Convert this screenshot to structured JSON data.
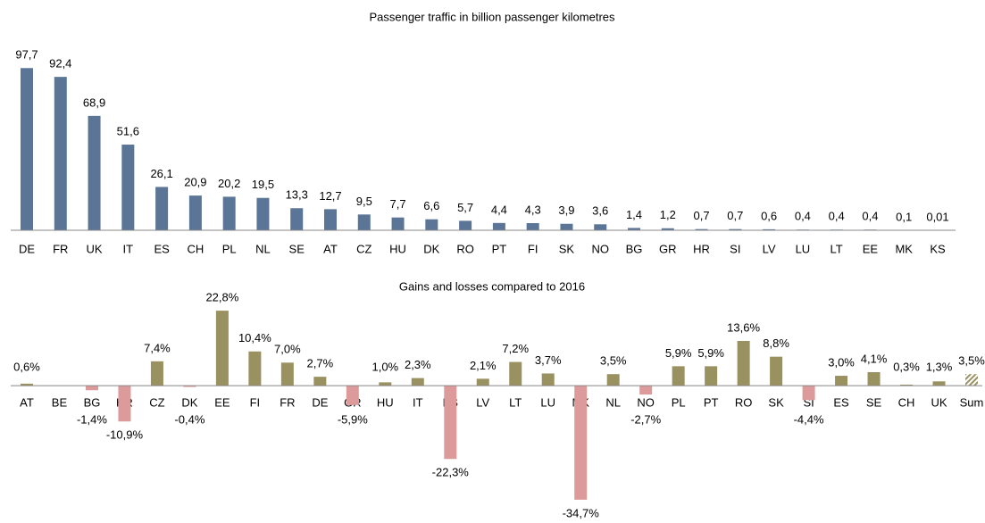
{
  "chart_data": [
    {
      "type": "bar",
      "title": "Passenger traffic in billion passenger kilometres",
      "categories": [
        "DE",
        "FR",
        "UK",
        "IT",
        "ES",
        "CH",
        "PL",
        "NL",
        "SE",
        "AT",
        "CZ",
        "HU",
        "DK",
        "RO",
        "PT",
        "FI",
        "SK",
        "NO",
        "BG",
        "GR",
        "HR",
        "SI",
        "LV",
        "LU",
        "LT",
        "EE",
        "MK",
        "KS"
      ],
      "values": [
        97.7,
        92.4,
        68.9,
        51.6,
        26.1,
        20.9,
        20.2,
        19.5,
        13.3,
        12.7,
        9.5,
        7.7,
        6.6,
        5.7,
        4.4,
        4.3,
        3.9,
        3.6,
        1.4,
        1.2,
        0.7,
        0.7,
        0.6,
        0.4,
        0.4,
        0.4,
        0.1,
        0.01
      ],
      "value_labels": [
        "97,7",
        "92,4",
        "68,9",
        "51,6",
        "26,1",
        "20,9",
        "20,2",
        "19,5",
        "13,3",
        "12,7",
        "9,5",
        "7,7",
        "6,6",
        "5,7",
        "4,4",
        "4,3",
        "3,9",
        "3,6",
        "1,4",
        "1,2",
        "0,7",
        "0,7",
        "0,6",
        "0,4",
        "0,4",
        "0,4",
        "0,1",
        "0,01"
      ],
      "color": "#5b7596",
      "ylim": [
        0,
        100
      ]
    },
    {
      "type": "bar",
      "title": "Gains and losses compared to 2016",
      "categories": [
        "AT",
        "BE",
        "BG",
        "HR",
        "CZ",
        "DK",
        "EE",
        "FI",
        "FR",
        "DE",
        "GR",
        "HU",
        "IT",
        "KS",
        "LV",
        "LT",
        "LU",
        "MK",
        "NL",
        "NO",
        "PL",
        "PT",
        "RO",
        "SK",
        "SI",
        "ES",
        "SE",
        "CH",
        "UK",
        "Sum"
      ],
      "values": [
        0.6,
        null,
        -1.4,
        -10.9,
        7.4,
        -0.4,
        22.8,
        10.4,
        7.0,
        2.7,
        -5.9,
        1.0,
        2.3,
        -22.3,
        2.1,
        7.2,
        3.7,
        -34.7,
        3.5,
        -2.7,
        5.9,
        5.9,
        13.6,
        8.8,
        -4.4,
        3.0,
        4.1,
        0.3,
        1.3,
        3.5
      ],
      "value_labels": [
        "0,6%",
        null,
        "-1,4%",
        "-10,9%",
        "7,4%",
        "-0,4%",
        "22,8%",
        "10,4%",
        "7,0%",
        "2,7%",
        "-5,9%",
        "1,0%",
        "2,3%",
        "-22,3%",
        "2,1%",
        "7,2%",
        "3,7%",
        "-34,7%",
        "3,5%",
        "-2,7%",
        "5,9%",
        "5,9%",
        "13,6%",
        "8,8%",
        "-4,4%",
        "3,0%",
        "4,1%",
        "0,3%",
        "1,3%",
        "3,5%"
      ],
      "color": "#9a9160",
      "negative_color": "#dc9a9a",
      "ylim": [
        -35,
        25
      ]
    }
  ]
}
